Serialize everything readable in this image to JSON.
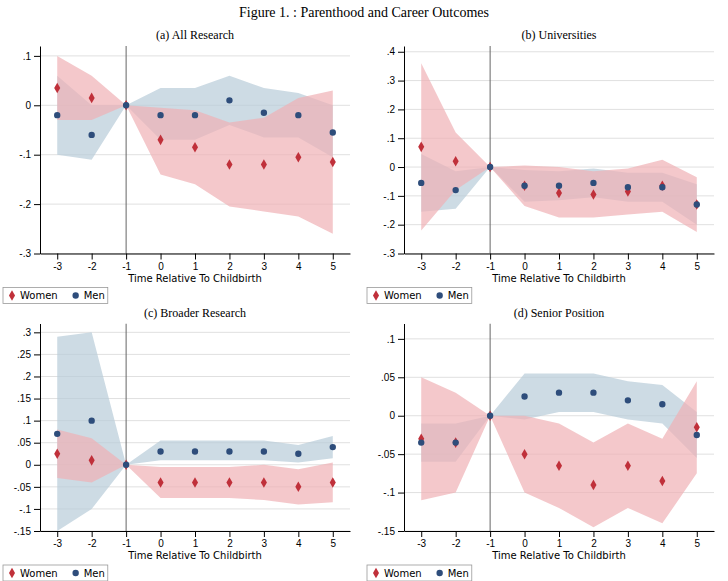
{
  "title": "Figure 1. : Parenthood and Career Outcomes",
  "chart_data": [
    {
      "type": "scatter",
      "title": "(a) All Research",
      "xlabel": "Time Relative To Childbirth",
      "xlim": [
        -3.5,
        5.5
      ],
      "xticks": [
        -3,
        -2,
        -1,
        0,
        1,
        2,
        3,
        4,
        5
      ],
      "ylim": [
        -0.3,
        0.12
      ],
      "yticks": [
        {
          "value": -0.3,
          "label": "-.3"
        },
        {
          "value": -0.2,
          "label": "-.2"
        },
        {
          "value": -0.1,
          "label": "-.1"
        },
        0,
        {
          "value": 0.1,
          "label": ".1"
        }
      ],
      "grid": true,
      "legend": "lower left",
      "vline": -1,
      "series": [
        {
          "type": "area",
          "color": "#b8ccd8",
          "x": [
            -3,
            -2,
            -1,
            0,
            1,
            2,
            3,
            4,
            5
          ],
          "lower": [
            -0.1,
            -0.11,
            0.0,
            -0.07,
            -0.07,
            -0.04,
            -0.065,
            -0.065,
            -0.105
          ],
          "upper": [
            0.06,
            0.0,
            0.0,
            0.035,
            0.035,
            0.06,
            0.035,
            0.025,
            0.0
          ]
        },
        {
          "type": "area",
          "color": "#f0b0b5",
          "x": [
            -3,
            -2,
            -1,
            0,
            1,
            2,
            3,
            4,
            5
          ],
          "lower": [
            -0.03,
            -0.03,
            0.0,
            -0.14,
            -0.16,
            -0.205,
            -0.215,
            -0.225,
            -0.26
          ],
          "upper": [
            0.1,
            0.06,
            0.0,
            -0.005,
            -0.01,
            -0.035,
            -0.025,
            0.015,
            0.03
          ]
        },
        {
          "name": "Women",
          "type": "scatter",
          "color": "#c0303a",
          "marker": "diamond",
          "x": [
            -3,
            -2,
            -1,
            0,
            1,
            2,
            3,
            4,
            5
          ],
          "values": [
            0.035,
            0.015,
            0.0,
            -0.07,
            -0.085,
            -0.12,
            -0.12,
            -0.105,
            -0.115
          ]
        },
        {
          "name": "Men",
          "type": "scatter",
          "color": "#2e4d7b",
          "marker": "circle",
          "x": [
            -3,
            -2,
            -1,
            0,
            1,
            2,
            3,
            4,
            5
          ],
          "values": [
            -0.02,
            -0.06,
            0.0,
            -0.02,
            -0.02,
            0.01,
            -0.015,
            -0.02,
            -0.055
          ]
        }
      ]
    },
    {
      "type": "scatter",
      "title": "(b) Universities",
      "xlabel": "Time Relative To Childbirth",
      "xlim": [
        -3.5,
        5.5
      ],
      "xticks": [
        -3,
        -2,
        -1,
        0,
        1,
        2,
        3,
        4,
        5
      ],
      "ylim": [
        -0.3,
        0.42
      ],
      "yticks": [
        {
          "value": -0.3,
          "label": "-.3"
        },
        {
          "value": -0.2,
          "label": "-.2"
        },
        {
          "value": -0.1,
          "label": "-.1"
        },
        0,
        {
          "value": 0.1,
          "label": ".1"
        },
        {
          "value": 0.2,
          "label": ".2"
        },
        {
          "value": 0.3,
          "label": ".3"
        },
        {
          "value": 0.4,
          "label": ".4"
        }
      ],
      "grid": true,
      "legend": "lower left",
      "vline": -1,
      "series": [
        {
          "type": "area",
          "color": "#b8ccd8",
          "x": [
            -3,
            -2,
            -1,
            0,
            1,
            2,
            3,
            4,
            5
          ],
          "lower": [
            -0.155,
            -0.145,
            0.0,
            -0.12,
            -0.115,
            -0.105,
            -0.12,
            -0.12,
            -0.2
          ],
          "upper": [
            0.045,
            -0.015,
            0.0,
            -0.01,
            -0.015,
            -0.005,
            -0.02,
            -0.02,
            -0.06
          ]
        },
        {
          "type": "area",
          "color": "#f0b0b5",
          "x": [
            -3,
            -2,
            -1,
            0,
            1,
            2,
            3,
            4,
            5
          ],
          "lower": [
            -0.22,
            -0.08,
            0.0,
            -0.135,
            -0.175,
            -0.175,
            -0.165,
            -0.155,
            -0.225
          ],
          "upper": [
            0.36,
            0.12,
            0.0,
            0.005,
            0.0,
            -0.015,
            -0.005,
            0.025,
            -0.035
          ]
        },
        {
          "name": "Women",
          "type": "scatter",
          "color": "#c0303a",
          "marker": "diamond",
          "x": [
            -3,
            -2,
            -1,
            0,
            1,
            2,
            3,
            4,
            5
          ],
          "values": [
            0.07,
            0.02,
            0.0,
            -0.065,
            -0.09,
            -0.095,
            -0.085,
            -0.065,
            -0.13
          ]
        },
        {
          "name": "Men",
          "type": "scatter",
          "color": "#2e4d7b",
          "marker": "circle",
          "x": [
            -3,
            -2,
            -1,
            0,
            1,
            2,
            3,
            4,
            5
          ],
          "values": [
            -0.055,
            -0.08,
            0.0,
            -0.065,
            -0.065,
            -0.055,
            -0.07,
            -0.07,
            -0.13
          ]
        }
      ]
    },
    {
      "type": "scatter",
      "title": "(c) Broader Research",
      "xlabel": "Time Relative To Childbirth",
      "xlim": [
        -3.5,
        5.5
      ],
      "xticks": [
        -3,
        -2,
        -1,
        0,
        1,
        2,
        3,
        4,
        5
      ],
      "ylim": [
        -0.15,
        0.32
      ],
      "yticks": [
        {
          "value": -0.15,
          "label": "-.15"
        },
        {
          "value": -0.1,
          "label": "-.1"
        },
        {
          "value": -0.05,
          "label": "-.05"
        },
        0,
        {
          "value": 0.05,
          "label": ".05"
        },
        {
          "value": 0.1,
          "label": ".1"
        },
        {
          "value": 0.15,
          "label": ".15"
        },
        {
          "value": 0.2,
          "label": ".2"
        },
        {
          "value": 0.25,
          "label": ".25"
        },
        {
          "value": 0.3,
          "label": ".3"
        }
      ],
      "grid": true,
      "legend": "lower left",
      "vline": -1,
      "series": [
        {
          "type": "area",
          "color": "#b8ccd8",
          "x": [
            -3,
            -2,
            -1,
            0,
            1,
            2,
            3,
            4,
            5
          ],
          "lower": [
            -0.15,
            -0.1,
            0.0,
            0.01,
            0.01,
            0.01,
            0.01,
            0.005,
            0.015
          ],
          "upper": [
            0.29,
            0.3,
            0.0,
            0.055,
            0.055,
            0.055,
            0.055,
            0.045,
            0.065
          ]
        },
        {
          "type": "area",
          "color": "#f0b0b5",
          "x": [
            -3,
            -2,
            -1,
            0,
            1,
            2,
            3,
            4,
            5
          ],
          "lower": [
            -0.03,
            -0.04,
            0.0,
            -0.075,
            -0.075,
            -0.075,
            -0.08,
            -0.09,
            -0.085
          ],
          "upper": [
            0.08,
            0.06,
            0.0,
            -0.005,
            -0.005,
            -0.005,
            0.0,
            -0.01,
            0.005
          ]
        },
        {
          "name": "Women",
          "type": "scatter",
          "color": "#c0303a",
          "marker": "diamond",
          "x": [
            -3,
            -2,
            -1,
            0,
            1,
            2,
            3,
            4,
            5
          ],
          "values": [
            0.025,
            0.01,
            0.0,
            -0.04,
            -0.04,
            -0.04,
            -0.04,
            -0.05,
            -0.04
          ]
        },
        {
          "name": "Men",
          "type": "scatter",
          "color": "#2e4d7b",
          "marker": "circle",
          "x": [
            -3,
            -2,
            -1,
            0,
            1,
            2,
            3,
            4,
            5
          ],
          "values": [
            0.07,
            0.1,
            0.0,
            0.03,
            0.03,
            0.03,
            0.03,
            0.025,
            0.04
          ]
        }
      ]
    },
    {
      "type": "scatter",
      "title": "(d) Senior Position",
      "xlabel": "Time Relative To Childbirth",
      "xlim": [
        -3.5,
        5.5
      ],
      "xticks": [
        -3,
        -2,
        -1,
        0,
        1,
        2,
        3,
        4,
        5
      ],
      "ylim": [
        -0.15,
        0.12
      ],
      "yticks": [
        {
          "value": -0.15,
          "label": "-.15"
        },
        {
          "value": -0.1,
          "label": "-.1"
        },
        {
          "value": -0.05,
          "label": "-.05"
        },
        0,
        {
          "value": 0.05,
          "label": ".05"
        },
        {
          "value": 0.1,
          "label": ".1"
        }
      ],
      "grid": true,
      "legend": "lower left",
      "vline": -1,
      "series": [
        {
          "type": "area",
          "color": "#b8ccd8",
          "x": [
            -3,
            -2,
            -1,
            0,
            1,
            2,
            3,
            4,
            5
          ],
          "lower": [
            -0.06,
            -0.06,
            0.0,
            -0.005,
            0.005,
            0.005,
            -0.005,
            -0.01,
            -0.055
          ],
          "upper": [
            -0.01,
            -0.01,
            0.0,
            0.055,
            0.055,
            0.055,
            0.045,
            0.04,
            0.005
          ]
        },
        {
          "type": "area",
          "color": "#f0b0b5",
          "x": [
            -3,
            -2,
            -1,
            0,
            1,
            2,
            3,
            4,
            5
          ],
          "lower": [
            -0.11,
            -0.1,
            0.0,
            -0.1,
            -0.12,
            -0.145,
            -0.12,
            -0.14,
            -0.075
          ],
          "upper": [
            0.05,
            0.03,
            0.0,
            0.0,
            -0.01,
            -0.035,
            -0.01,
            -0.03,
            0.045
          ]
        },
        {
          "name": "Women",
          "type": "scatter",
          "color": "#c0303a",
          "marker": "diamond",
          "x": [
            -3,
            -2,
            -1,
            0,
            1,
            2,
            3,
            4,
            5
          ],
          "values": [
            -0.03,
            -0.035,
            0.0,
            -0.05,
            -0.065,
            -0.09,
            -0.065,
            -0.085,
            -0.015
          ]
        },
        {
          "name": "Men",
          "type": "scatter",
          "color": "#2e4d7b",
          "marker": "circle",
          "x": [
            -3,
            -2,
            -1,
            0,
            1,
            2,
            3,
            4,
            5
          ],
          "values": [
            -0.035,
            -0.035,
            0.0,
            0.025,
            0.03,
            0.03,
            0.02,
            0.015,
            -0.025
          ]
        }
      ]
    }
  ]
}
